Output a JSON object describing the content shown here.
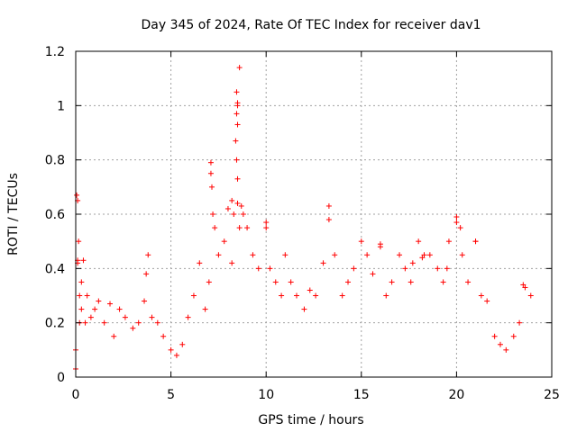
{
  "chart_data": {
    "type": "scatter",
    "title": "Day 345 of 2024, Rate Of TEC Index for receiver dav1",
    "xlabel": "GPS time / hours",
    "ylabel": "ROTI / TECUs",
    "xlim": [
      0,
      25
    ],
    "ylim": [
      0,
      1.2
    ],
    "xticks": [
      "0",
      "5",
      "10",
      "15",
      "20",
      "25"
    ],
    "yticks": [
      "0",
      "0.2",
      "0.4",
      "0.6",
      "0.8",
      "1",
      "1.2"
    ],
    "grid": true,
    "marker": "+",
    "color": "#ff0000",
    "series": [
      {
        "x": [
          0.0,
          0.05,
          0.1,
          0.15,
          0.2,
          0.3,
          0.4,
          0.5,
          0.6,
          0.8,
          1.0,
          1.2,
          1.5,
          1.8,
          2.0,
          2.3,
          2.6,
          3.0,
          3.3,
          3.6,
          3.8,
          4.0,
          4.3,
          4.6,
          5.0,
          5.3,
          5.6,
          5.9,
          6.2,
          6.5,
          6.8,
          7.0,
          7.1,
          7.2,
          7.3,
          7.5,
          7.8,
          8.0,
          8.2,
          8.4,
          8.5,
          8.6,
          8.8,
          9.0,
          9.3,
          9.6,
          10.0,
          10.2,
          10.5,
          10.8,
          11.0,
          11.3,
          11.6,
          12.0,
          12.3,
          12.6,
          13.0,
          13.3,
          13.6,
          14.0,
          14.3,
          14.6,
          15.0,
          15.3,
          15.6,
          16.0,
          16.3,
          16.6,
          17.0,
          17.3,
          17.6,
          18.0,
          18.3,
          18.6,
          19.0,
          19.3,
          19.6,
          20.0,
          20.3,
          20.6,
          21.0,
          21.3,
          21.6,
          22.0,
          22.3,
          22.6,
          23.0,
          23.3,
          23.6,
          23.9,
          0.0,
          0.1,
          0.1,
          0.2,
          7.1,
          7.15,
          8.45,
          8.45,
          8.5,
          8.5,
          8.45,
          8.5,
          8.5,
          8.3,
          8.7,
          8.6,
          10.0,
          13.3,
          16.0,
          20.0,
          21.0,
          0.3,
          3.7,
          8.2,
          17.7,
          18.2,
          19.5,
          20.2,
          23.5
        ],
        "y": [
          0.1,
          0.67,
          0.65,
          0.5,
          0.3,
          0.25,
          0.43,
          0.2,
          0.3,
          0.22,
          0.25,
          0.28,
          0.2,
          0.27,
          0.15,
          0.25,
          0.22,
          0.18,
          0.2,
          0.28,
          0.45,
          0.22,
          0.2,
          0.15,
          0.1,
          0.08,
          0.12,
          0.22,
          0.3,
          0.42,
          0.25,
          0.35,
          0.79,
          0.6,
          0.55,
          0.45,
          0.5,
          0.62,
          0.65,
          0.87,
          1.0,
          1.14,
          0.6,
          0.55,
          0.45,
          0.4,
          0.57,
          0.4,
          0.35,
          0.3,
          0.45,
          0.35,
          0.3,
          0.25,
          0.32,
          0.3,
          0.42,
          0.63,
          0.45,
          0.3,
          0.35,
          0.4,
          0.5,
          0.45,
          0.38,
          0.49,
          0.3,
          0.35,
          0.45,
          0.4,
          0.35,
          0.5,
          0.45,
          0.45,
          0.4,
          0.35,
          0.5,
          0.59,
          0.45,
          0.35,
          0.5,
          0.3,
          0.28,
          0.15,
          0.12,
          0.1,
          0.15,
          0.2,
          0.33,
          0.3,
          0.03,
          0.43,
          0.42,
          0.2,
          0.75,
          0.7,
          1.05,
          0.97,
          1.01,
          0.64,
          0.8,
          0.93,
          0.73,
          0.6,
          0.63,
          0.55,
          0.55,
          0.58,
          0.48,
          0.57,
          0.5,
          0.35,
          0.38,
          0.42,
          0.42,
          0.44,
          0.4,
          0.55,
          0.34
        ]
      }
    ]
  }
}
